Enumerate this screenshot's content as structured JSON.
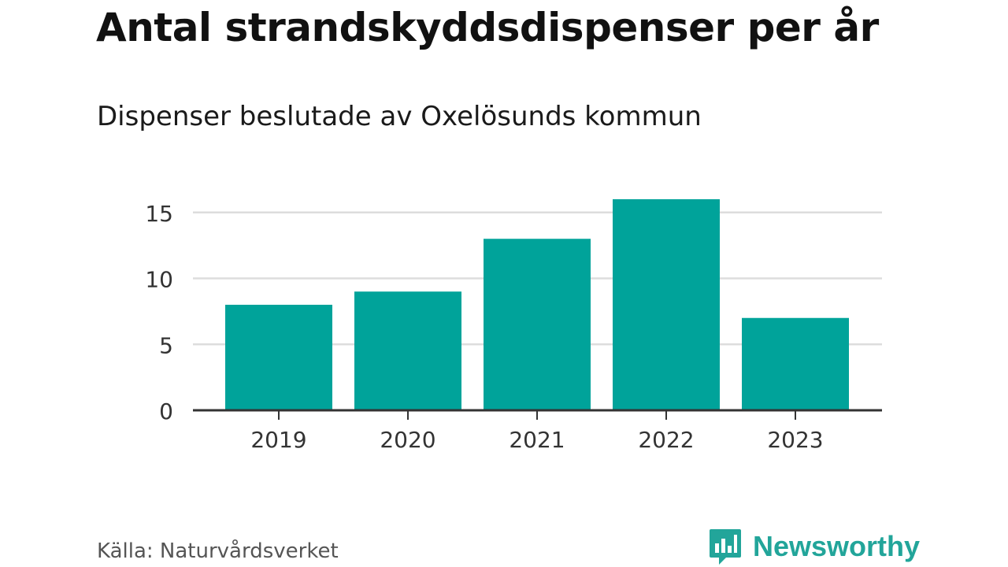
{
  "title": "Antal strandskyddsdispenser per år",
  "subtitle": "Dispenser beslutade av Oxelösunds kommun",
  "source": "Källa: Naturvårdsverket",
  "brand": {
    "name": "Newsworthy",
    "color": "#22a59a"
  },
  "chart_data": {
    "type": "bar",
    "categories": [
      "2019",
      "2020",
      "2021",
      "2022",
      "2023"
    ],
    "values": [
      8,
      9,
      13,
      16,
      7
    ],
    "xlabel": "",
    "ylabel": "",
    "ylim": [
      0,
      16
    ],
    "yticks": [
      0,
      5,
      10,
      15
    ],
    "grid": true,
    "bar_color": "#00a39a",
    "legend": "none"
  }
}
